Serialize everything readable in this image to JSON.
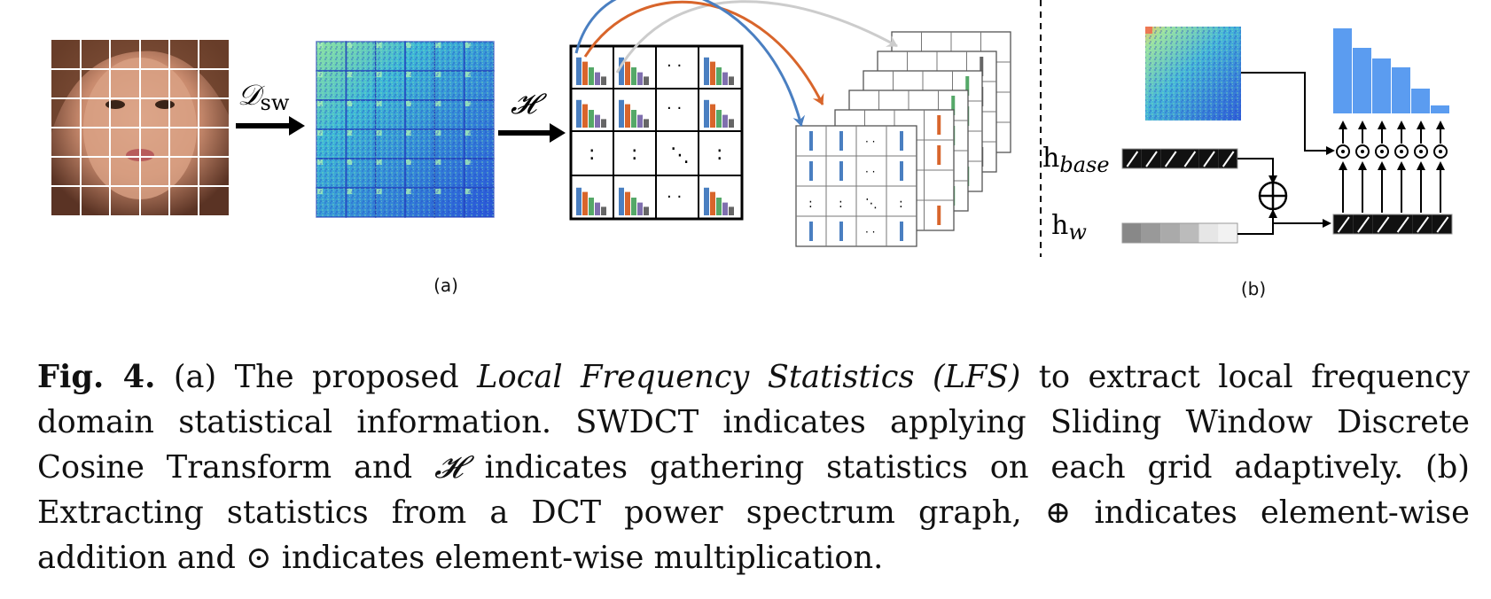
{
  "figure": {
    "panel_a": {
      "label": "(a)",
      "op_dsw": "𝒟",
      "op_dsw_sub": "sw",
      "op_h": "𝓗",
      "dots_h": "· ·",
      "dots_v": ":",
      "dots_d": "⋱"
    },
    "panel_b": {
      "label": "(b)",
      "h_base_main": "h",
      "h_base_sub": "base",
      "h_w_main": "h",
      "h_w_sub": "w",
      "oplus_symbol": "⊕",
      "odot_symbol": "⊙"
    },
    "colors": {
      "blue": "#4a7fc1",
      "orange": "#d8652b",
      "green": "#55a868",
      "purple": "#7f6fae",
      "gray": "#666666",
      "light_gray": "#cccccc",
      "bar_blue": "#5b9cf0"
    }
  },
  "caption": {
    "label": "Fig. 4.",
    "part1": " (a) The proposed ",
    "lfs_italic": "Local Frequency Statistics (LFS)",
    "part2": " to extract local frequency domain statistical information. SWDCT indicates applying Sliding Window Discrete Cosine Transform and ",
    "h_symbol": "𝓗",
    "part3": " indicates gathering statistics on each grid adaptively. (b) Extracting statistics from a DCT power spectrum graph, ",
    "oplus": "⊕",
    "part4": " indicates element-wise addition and ",
    "odot": "⊙",
    "part5": " indicates element-wise multiplication."
  }
}
